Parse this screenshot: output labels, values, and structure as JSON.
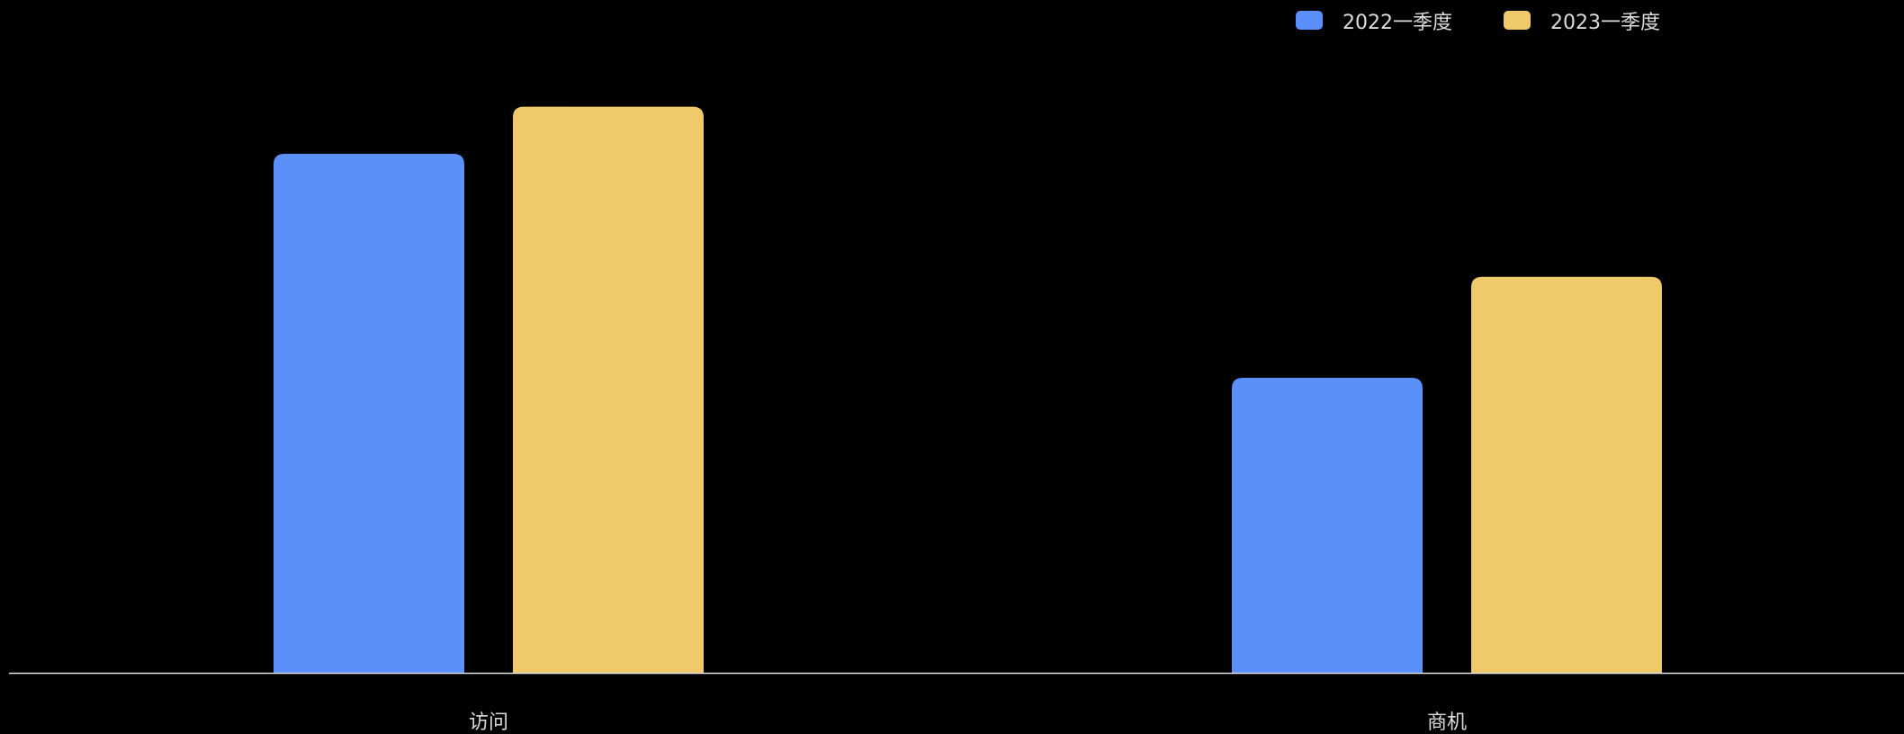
{
  "colors": {
    "background": "#000000",
    "series_2022": "#5b8ff9",
    "series_2023": "#f0c96a",
    "axis": "#dcdcdc",
    "text": "#dcdcdc"
  },
  "chart_data": {
    "type": "bar",
    "categories": [
      "访问",
      "商机"
    ],
    "series": [
      {
        "name": "2022一季度",
        "values": [
          540,
          307
        ]
      },
      {
        "name": "2023一季度",
        "values": [
          589,
          412
        ]
      }
    ],
    "ylim": [
      0,
      700
    ],
    "grid": false,
    "legend_position": "top-right"
  }
}
